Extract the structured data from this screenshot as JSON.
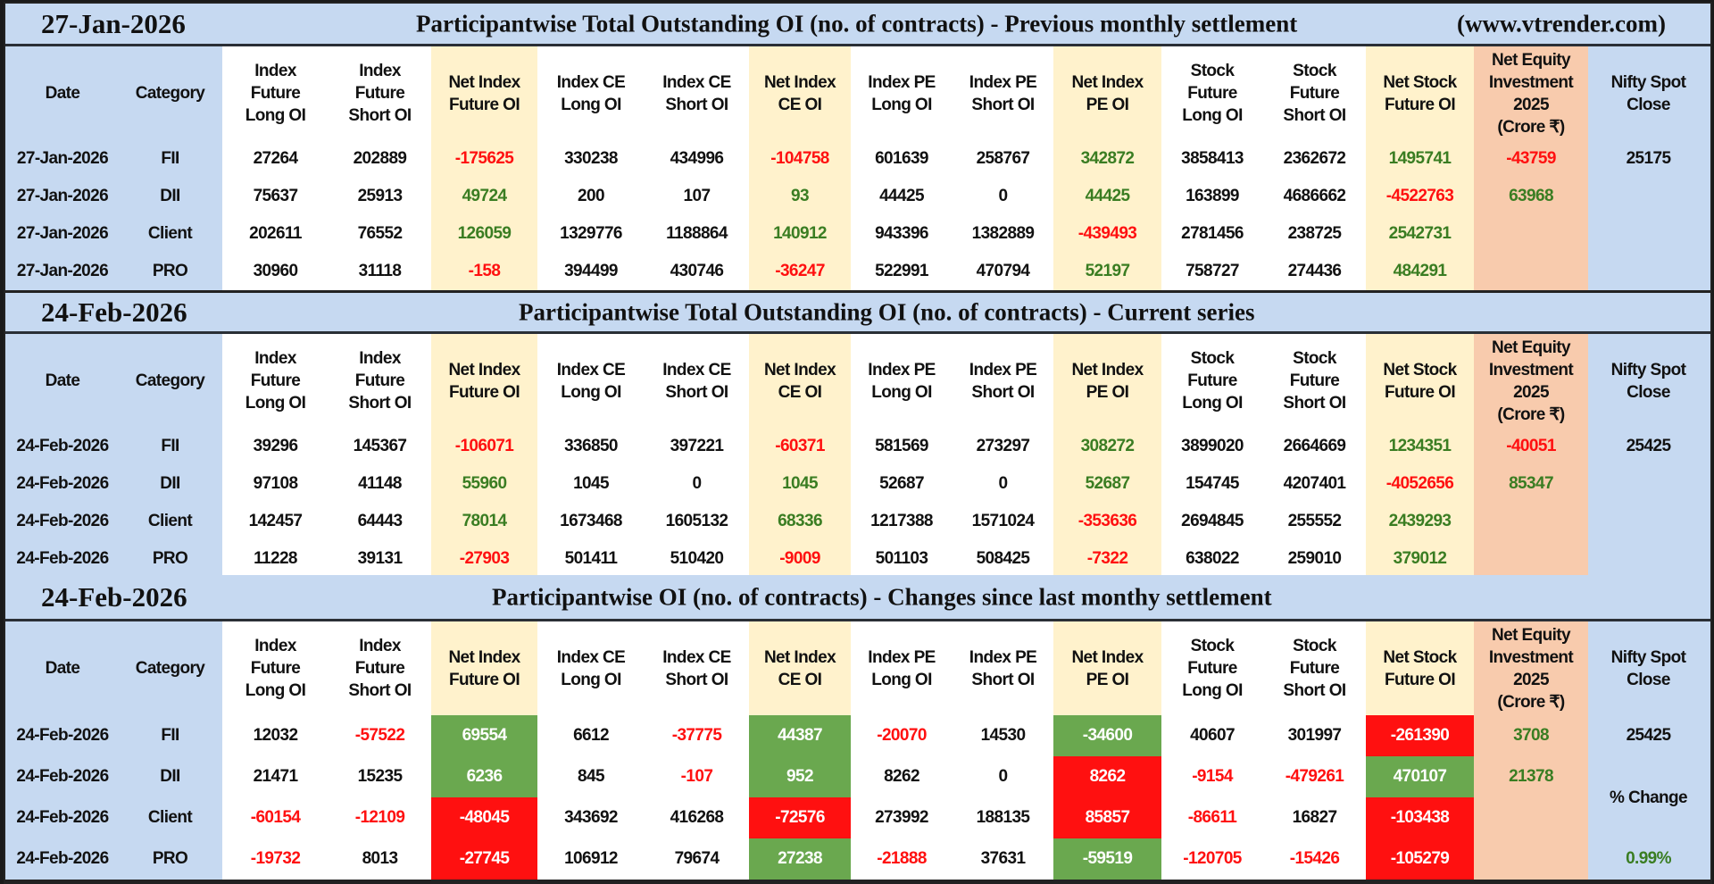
{
  "headers": [
    "Date",
    "Category",
    "Index\nFuture\nLong OI",
    "Index\nFuture\nShort OI",
    "Net Index\nFuture OI",
    "Index CE\nLong OI",
    "Index CE\nShort OI",
    "Net Index\nCE OI",
    "Index PE\nLong OI",
    "Index PE\nShort OI",
    "Net Index\nPE OI",
    "Stock\nFuture\nLong OI",
    "Stock\nFuture\nShort OI",
    "Net Stock\nFuture OI",
    "Net Equity\nInvestment\n2025\n(Crore ₹)",
    "Nifty Spot\nClose"
  ],
  "colors": {
    "background": "#c6d9f1",
    "highlight": "#fff2cc",
    "equity": "#f8cbad",
    "negative": "#ff1010",
    "positive": "#3a7d22",
    "fill_positive": "#6aa84f",
    "fill_negative": "#ff1010"
  },
  "sections": [
    {
      "date": "27-Jan-2026",
      "title": "Participantwise Total Outstanding OI (no. of contracts) - Previous monthly settlement",
      "website": "(www.vtrender.com)",
      "rows": [
        {
          "date": "27-Jan-2026",
          "category": "FII",
          "values": [
            "27264",
            "202889",
            "-175625",
            "330238",
            "434996",
            "-104758",
            "601639",
            "258767",
            "342872",
            "3858413",
            "2362672",
            "1495741",
            "-43759",
            "25175"
          ],
          "tones": [
            "k",
            "k",
            "r",
            "k",
            "k",
            "r",
            "k",
            "k",
            "g",
            "k",
            "k",
            "g",
            "r",
            "k"
          ]
        },
        {
          "date": "27-Jan-2026",
          "category": "DII",
          "values": [
            "75637",
            "25913",
            "49724",
            "200",
            "107",
            "93",
            "44425",
            "0",
            "44425",
            "163899",
            "4686662",
            "-4522763",
            "63968",
            ""
          ],
          "tones": [
            "k",
            "k",
            "g",
            "k",
            "k",
            "g",
            "k",
            "k",
            "g",
            "k",
            "k",
            "r",
            "g",
            "k"
          ]
        },
        {
          "date": "27-Jan-2026",
          "category": "Client",
          "values": [
            "202611",
            "76552",
            "126059",
            "1329776",
            "1188864",
            "140912",
            "943396",
            "1382889",
            "-439493",
            "2781456",
            "238725",
            "2542731",
            "",
            ""
          ],
          "tones": [
            "k",
            "k",
            "g",
            "k",
            "k",
            "g",
            "k",
            "k",
            "r",
            "k",
            "k",
            "g",
            "k",
            "k"
          ]
        },
        {
          "date": "27-Jan-2026",
          "category": "PRO",
          "values": [
            "30960",
            "31118",
            "-158",
            "394499",
            "430746",
            "-36247",
            "522991",
            "470794",
            "52197",
            "758727",
            "274436",
            "484291",
            "",
            ""
          ],
          "tones": [
            "k",
            "k",
            "r",
            "k",
            "k",
            "r",
            "k",
            "k",
            "g",
            "k",
            "k",
            "g",
            "k",
            "k"
          ]
        }
      ]
    },
    {
      "date": "24-Feb-2026",
      "title": "Participantwise Total Outstanding OI (no. of contracts) - Current series",
      "rows": [
        {
          "date": "24-Feb-2026",
          "category": "FII",
          "values": [
            "39296",
            "145367",
            "-106071",
            "336850",
            "397221",
            "-60371",
            "581569",
            "273297",
            "308272",
            "3899020",
            "2664669",
            "1234351",
            "-40051",
            "25425"
          ],
          "tones": [
            "k",
            "k",
            "r",
            "k",
            "k",
            "r",
            "k",
            "k",
            "g",
            "k",
            "k",
            "g",
            "r",
            "k"
          ]
        },
        {
          "date": "24-Feb-2026",
          "category": "DII",
          "values": [
            "97108",
            "41148",
            "55960",
            "1045",
            "0",
            "1045",
            "52687",
            "0",
            "52687",
            "154745",
            "4207401",
            "-4052656",
            "85347",
            ""
          ],
          "tones": [
            "k",
            "k",
            "g",
            "k",
            "k",
            "g",
            "k",
            "k",
            "g",
            "k",
            "k",
            "r",
            "g",
            "k"
          ]
        },
        {
          "date": "24-Feb-2026",
          "category": "Client",
          "values": [
            "142457",
            "64443",
            "78014",
            "1673468",
            "1605132",
            "68336",
            "1217388",
            "1571024",
            "-353636",
            "2694845",
            "255552",
            "2439293",
            "",
            ""
          ],
          "tones": [
            "k",
            "k",
            "g",
            "k",
            "k",
            "g",
            "k",
            "k",
            "r",
            "k",
            "k",
            "g",
            "k",
            "k"
          ]
        },
        {
          "date": "24-Feb-2026",
          "category": "PRO",
          "values": [
            "11228",
            "39131",
            "-27903",
            "501411",
            "510420",
            "-9009",
            "501103",
            "508425",
            "-7322",
            "638022",
            "259010",
            "379012",
            "",
            ""
          ],
          "tones": [
            "k",
            "k",
            "r",
            "k",
            "k",
            "r",
            "k",
            "k",
            "r",
            "k",
            "k",
            "g",
            "k",
            "k"
          ]
        }
      ]
    },
    {
      "date": "24-Feb-2026",
      "title": "Participantwise OI (no. of contracts) - Changes since last monthy settlement",
      "rows": [
        {
          "date": "24-Feb-2026",
          "category": "FII",
          "values": [
            "12032",
            "-57522",
            "69554",
            "6612",
            "-37775",
            "44387",
            "-20070",
            "14530",
            "-34600",
            "40607",
            "301997",
            "-261390",
            "3708",
            "25425"
          ],
          "tones": [
            "k",
            "r",
            "G",
            "k",
            "r",
            "G",
            "r",
            "k",
            "G",
            "k",
            "k",
            "R",
            "g",
            "k"
          ]
        },
        {
          "date": "24-Feb-2026",
          "category": "DII",
          "values": [
            "21471",
            "15235",
            "6236",
            "845",
            "-107",
            "952",
            "8262",
            "0",
            "8262",
            "-9154",
            "-479261",
            "470107",
            "21378",
            ""
          ],
          "tones": [
            "k",
            "k",
            "G",
            "k",
            "r",
            "G",
            "k",
            "k",
            "R",
            "r",
            "r",
            "G",
            "g",
            "k"
          ]
        },
        {
          "date": "24-Feb-2026",
          "category": "Client",
          "values": [
            "-60154",
            "-12109",
            "-48045",
            "343692",
            "416268",
            "-72576",
            "273992",
            "188135",
            "85857",
            "-86611",
            "16827",
            "-103438",
            "",
            "% Change"
          ],
          "tones": [
            "r",
            "r",
            "R",
            "k",
            "k",
            "R",
            "k",
            "k",
            "R",
            "r",
            "k",
            "R",
            "k",
            "k"
          ]
        },
        {
          "date": "24-Feb-2026",
          "category": "PRO",
          "values": [
            "-19732",
            "8013",
            "-27745",
            "106912",
            "79674",
            "27238",
            "-21888",
            "37631",
            "-59519",
            "-120705",
            "-15426",
            "-105279",
            "",
            "0.99%"
          ],
          "tones": [
            "r",
            "k",
            "R",
            "k",
            "k",
            "G",
            "r",
            "k",
            "G",
            "r",
            "r",
            "R",
            "k",
            "g"
          ]
        }
      ]
    }
  ]
}
